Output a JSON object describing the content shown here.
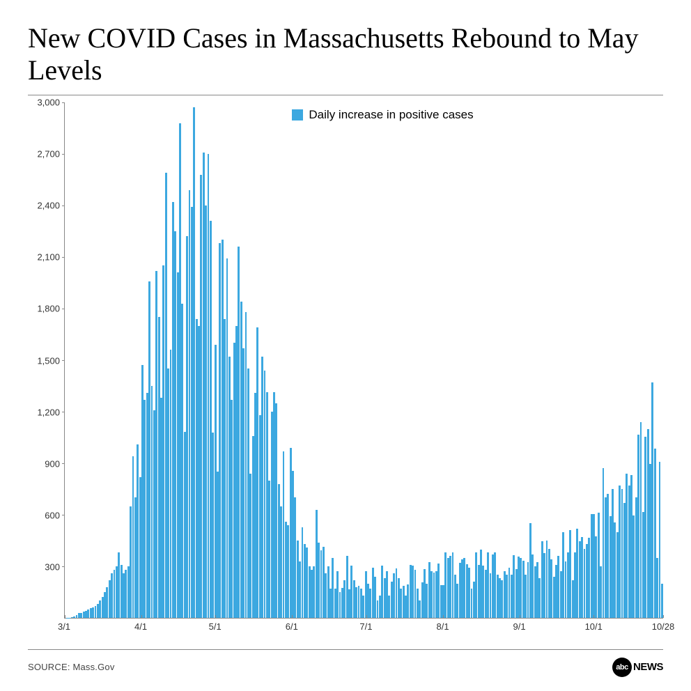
{
  "title": "New COVID Cases in Massachusetts Rebound to May Levels",
  "chart": {
    "type": "bar",
    "legend_label": "Daily increase in positive cases",
    "bar_color": "#3ca8e0",
    "background_color": "#ffffff",
    "grid_color": "#888888",
    "ylim": [
      0,
      3000
    ],
    "ytick_step": 300,
    "y_ticks": [
      "3,000",
      "2,700",
      "2,400",
      "2,100",
      "1,800",
      "1,500",
      "1,200",
      "900",
      "600",
      "300"
    ],
    "x_ticks": [
      {
        "label": "3/1",
        "pos": 0
      },
      {
        "label": "4/1",
        "pos": 12.8
      },
      {
        "label": "5/1",
        "pos": 25.2
      },
      {
        "label": "6/1",
        "pos": 38.0
      },
      {
        "label": "7/1",
        "pos": 50.4
      },
      {
        "label": "8/1",
        "pos": 63.2
      },
      {
        "label": "9/1",
        "pos": 76.0
      },
      {
        "label": "10/1",
        "pos": 88.4
      },
      {
        "label": "10/28",
        "pos": 100
      }
    ],
    "title_fontsize": 40,
    "axis_fontsize": 13,
    "legend_fontsize": 17,
    "values": [
      2,
      2,
      5,
      10,
      15,
      30,
      30,
      35,
      40,
      50,
      55,
      60,
      70,
      80,
      100,
      120,
      150,
      180,
      220,
      260,
      280,
      300,
      380,
      310,
      260,
      280,
      300,
      650,
      940,
      700,
      1010,
      820,
      1470,
      1270,
      1310,
      1960,
      1350,
      1210,
      2020,
      1750,
      1280,
      2050,
      2590,
      1450,
      1560,
      2420,
      2250,
      2010,
      2880,
      1830,
      1083,
      2220,
      2490,
      2390,
      2970,
      1740,
      1700,
      2580,
      2710,
      2400,
      2700,
      2310,
      1080,
      1590,
      850,
      2180,
      2200,
      1740,
      2090,
      1520,
      1270,
      1600,
      1700,
      2160,
      1840,
      1570,
      1780,
      1450,
      840,
      1060,
      1310,
      1690,
      1180,
      1520,
      1440,
      1315,
      800,
      1200,
      1315,
      1248,
      780,
      650,
      970,
      560,
      540,
      990,
      855,
      700,
      450,
      330,
      526,
      430,
      410,
      300,
      280,
      300,
      630,
      439,
      395,
      415,
      260,
      300,
      170,
      350,
      170,
      270,
      150,
      175,
      220,
      360,
      165,
      303,
      220,
      180,
      186,
      170,
      130,
      270,
      200,
      170,
      290,
      240,
      100,
      130,
      305,
      230,
      270,
      128,
      210,
      260,
      287,
      230,
      170,
      185,
      130,
      195,
      310,
      305,
      280,
      170,
      100,
      205,
      285,
      200,
      326,
      270,
      265,
      270,
      315,
      190,
      192,
      380,
      350,
      360,
      380,
      250,
      200,
      320,
      340,
      347,
      312,
      290,
      171,
      210,
      380,
      310,
      398,
      306,
      280,
      380,
      260,
      370,
      380,
      250,
      230,
      220,
      270,
      250,
      290,
      250,
      365,
      285,
      355,
      350,
      333,
      250,
      326,
      550,
      370,
      300,
      325,
      230,
      445,
      378,
      450,
      400,
      340,
      240,
      310,
      360,
      270,
      500,
      330,
      380,
      510,
      220,
      380,
      520,
      444,
      470,
      400,
      430,
      467,
      606,
      605,
      476,
      611,
      300,
      870,
      700,
      720,
      590,
      750,
      554,
      500,
      770,
      750,
      670,
      840,
      770,
      830,
      597,
      700,
      1065,
      1140,
      615,
      1055,
      1100,
      895,
      1372,
      985,
      350,
      910,
      200
    ]
  },
  "footer": {
    "source_label": "SOURCE: Mass.Gov",
    "logo_circle": "abc",
    "logo_text": "NEWS"
  }
}
